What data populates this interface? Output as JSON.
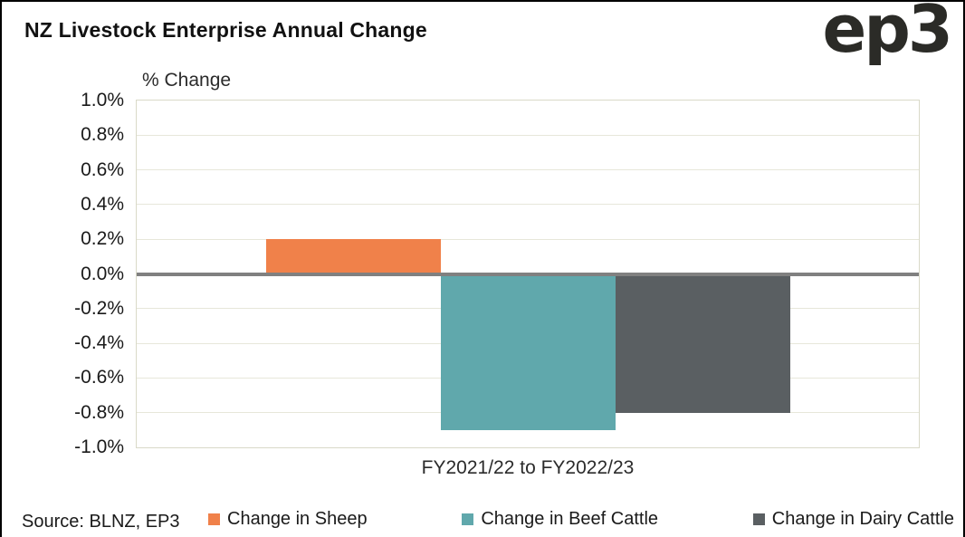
{
  "header": {
    "title": "NZ Livestock Enterprise Annual Change",
    "logo_text": "ep3"
  },
  "chart_data": {
    "type": "bar",
    "title": "NZ Livestock Enterprise Annual Change",
    "categories": [
      "FY2021/22 to FY2022/23"
    ],
    "series": [
      {
        "name": "Change in Sheep",
        "color": "#F0814A",
        "values": [
          0.2
        ]
      },
      {
        "name": "Change in Beef Cattle",
        "color": "#60A8AC",
        "values": [
          -0.9
        ]
      },
      {
        "name": "Change in Dairy Cattle",
        "color": "#5A5F62",
        "values": [
          -0.8
        ]
      }
    ],
    "ylabel": "% Change",
    "xlabel": "FY2021/22 to FY2022/23",
    "ylim": [
      -1.0,
      1.0
    ],
    "yticks": [
      1.0,
      0.8,
      0.6,
      0.4,
      0.2,
      0.0,
      -0.2,
      -0.4,
      -0.6,
      -0.8,
      -1.0
    ],
    "ytick_labels": [
      "1.0%",
      "0.8%",
      "0.6%",
      "0.4%",
      "0.2%",
      "0.0%",
      "-0.2%",
      "-0.4%",
      "-0.6%",
      "-0.8%",
      "-1.0%"
    ],
    "grid": true,
    "legend_position": "bottom",
    "zero_line_color": "#808080",
    "gridline_color": "#E7E7DA",
    "plot_border_color": "#D9D9C8"
  },
  "axis": {
    "y_title": "% Change",
    "x_label": "FY2021/22 to FY2022/23"
  },
  "footer": {
    "source": "Source: BLNZ, EP3"
  }
}
